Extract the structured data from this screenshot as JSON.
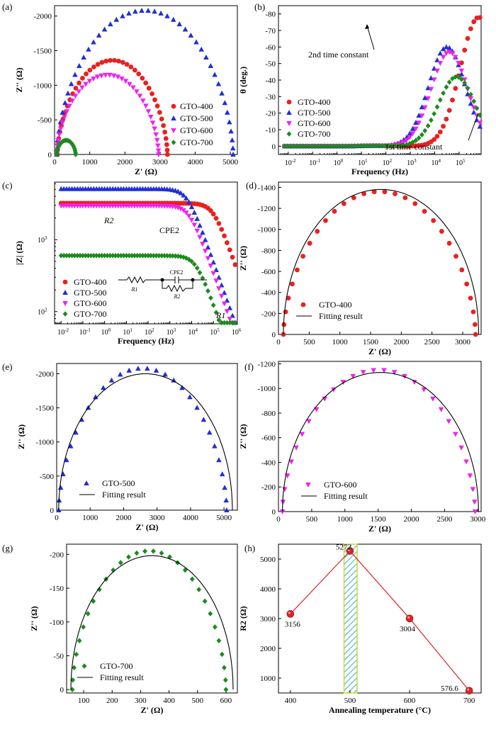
{
  "colors": {
    "GTO-400": "#e8211f",
    "GTO-500": "#1f2fd6",
    "GTO-600": "#ee22ee",
    "GTO-700": "#1d8a1d",
    "fit": "#000000",
    "hatch": "#4fb8d8",
    "hatch_border": "#c8d83a"
  },
  "chart_data": [
    {
      "panel": "(a)",
      "type": "scatter",
      "xlabel": "Z' (Ω)",
      "ylabel": "Z'' (Ω)",
      "xlim": [
        0,
        5200
      ],
      "ylim": [
        0,
        -2150
      ],
      "xticks": [
        0,
        1000,
        2000,
        3000,
        4000,
        5000
      ],
      "yticks": [
        0,
        -500,
        -1000,
        -1500,
        -2000
      ],
      "series": [
        {
          "name": "GTO-400",
          "marker": "circle",
          "arc": [
            80,
            3210,
            1360,
            1.2,
            42
          ]
        },
        {
          "name": "GTO-500",
          "marker": "triangle-up",
          "arc": [
            60,
            5080,
            2080,
            1.2,
            44
          ]
        },
        {
          "name": "GTO-600",
          "marker": "triangle-down",
          "arc": [
            60,
            2960,
            1150,
            1.2,
            40
          ]
        },
        {
          "name": "GTO-700",
          "marker": "diamond",
          "arc": [
            60,
            600,
            205,
            1.2,
            20
          ]
        }
      ],
      "legend": "bottom-right"
    },
    {
      "panel": "(b)",
      "type": "scatter",
      "xlabel": "Frequency (Hz)",
      "ylabel": "θ (deg.)",
      "xscale": "log",
      "xlim": [
        -2.4,
        5.9
      ],
      "ylim": [
        5,
        -85
      ],
      "xticks": [
        -2,
        -1,
        0,
        1,
        2,
        3,
        4,
        5
      ],
      "yticks": [
        0,
        -10,
        -20,
        -30,
        -40,
        -50,
        -60,
        -70,
        -80
      ],
      "series": [
        {
          "name": "GTO-400",
          "marker": "circle",
          "dip": [
            5.8,
            78,
            0.75
          ]
        },
        {
          "name": "GTO-500",
          "marker": "triangle-up",
          "dip": [
            4.5,
            60,
            0.75
          ]
        },
        {
          "name": "GTO-600",
          "marker": "triangle-down",
          "dip": [
            4.6,
            57,
            0.75
          ]
        },
        {
          "name": "GTO-700",
          "marker": "diamond",
          "dip": [
            4.9,
            42,
            0.75
          ]
        }
      ],
      "annotations": [
        "2nd time constant",
        "1st time constant"
      ],
      "legend": "bottom-left"
    },
    {
      "panel": "(c)",
      "type": "scatter",
      "xlabel": "Frequency (Hz)",
      "ylabel": "|Z| (Ω)",
      "xscale": "log",
      "yscale": "log",
      "xlim": [
        -2.3,
        6.1
      ],
      "ylim": [
        1.83,
        3.8
      ],
      "xticks": [
        -2,
        -1,
        0,
        1,
        2,
        3,
        4,
        5,
        6
      ],
      "yticks": [
        2,
        3
      ],
      "series": [
        {
          "name": "GTO-400",
          "marker": "circle",
          "bode": [
            3210,
            5.0
          ]
        },
        {
          "name": "GTO-500",
          "marker": "triangle-up",
          "bode": [
            5080,
            3.8
          ]
        },
        {
          "name": "GTO-600",
          "marker": "triangle-down",
          "bode": [
            2960,
            3.9
          ]
        },
        {
          "name": "GTO-700",
          "marker": "diamond",
          "bode": [
            600,
            4.2
          ]
        }
      ],
      "annotations": [
        "R2",
        "CPE2",
        "R1"
      ],
      "circuit_labels": [
        "R1",
        "CPE2",
        "R2"
      ],
      "legend": "bottom-left"
    },
    {
      "panel": "(d)",
      "type": "scatter",
      "xlabel": "Z' (Ω)",
      "ylabel": "Z'' (Ω)",
      "xlim": [
        0,
        3300
      ],
      "ylim": [
        0,
        -1450
      ],
      "xticks": [
        0,
        500,
        1000,
        1500,
        2000,
        2500,
        3000
      ],
      "yticks": [
        0,
        -200,
        -400,
        -600,
        -800,
        -1000,
        -1200,
        -1400
      ],
      "series": [
        {
          "name": "GTO-400",
          "marker": "circle",
          "arc": [
            80,
            3210,
            1360,
            1.2,
            30
          ]
        }
      ],
      "fit": {
        "name": "Fitting result",
        "arc": [
          80,
          3260,
          1380,
          1.0
        ]
      },
      "legend": "bottom-center"
    },
    {
      "panel": "(e)",
      "type": "scatter",
      "xlabel": "Z' (Ω)",
      "ylabel": "Z'' (Ω)",
      "xlim": [
        0,
        5400
      ],
      "ylim": [
        0,
        -2150
      ],
      "xticks": [
        0,
        1000,
        2000,
        3000,
        4000,
        5000
      ],
      "yticks": [
        0,
        -500,
        -1000,
        -1500,
        -2000
      ],
      "series": [
        {
          "name": "GTO-500",
          "marker": "triangle-up",
          "arc": [
            60,
            5080,
            2080,
            1.2,
            30
          ]
        }
      ],
      "fit": {
        "name": "Fitting result",
        "arc": [
          60,
          5250,
          2000,
          1.0
        ]
      },
      "legend": "bottom-left"
    },
    {
      "panel": "(f)",
      "type": "scatter",
      "xlabel": "Z' (Ω)",
      "ylabel": "Z'' (Ω)",
      "xlim": [
        0,
        3050
      ],
      "ylim": [
        0,
        -1220
      ],
      "xticks": [
        0,
        500,
        1000,
        1500,
        2000,
        2500,
        3000
      ],
      "yticks": [
        0,
        -200,
        -400,
        -600,
        -800,
        -1000,
        -1200
      ],
      "series": [
        {
          "name": "GTO-600",
          "marker": "triangle-down",
          "arc": [
            60,
            2960,
            1150,
            1.2,
            30
          ]
        }
      ],
      "fit": {
        "name": "Fitting result",
        "arc": [
          60,
          3010,
          1130,
          1.0
        ]
      },
      "legend": "bottom-left"
    },
    {
      "panel": "(g)",
      "type": "scatter",
      "xlabel": "Z' (Ω)",
      "ylabel": "Z'' (Ω)",
      "xlim": [
        40,
        640
      ],
      "ylim": [
        5,
        -215
      ],
      "xticks": [
        100,
        200,
        300,
        400,
        500,
        600
      ],
      "yticks": [
        0,
        -50,
        -100,
        -150,
        -200
      ],
      "series": [
        {
          "name": "GTO-700",
          "marker": "diamond",
          "arc": [
            60,
            600,
            205,
            1.2,
            30
          ]
        }
      ],
      "fit": {
        "name": "Fitting result",
        "arc": [
          55,
          625,
          198,
          1.0
        ]
      },
      "legend": "bottom-left"
    },
    {
      "panel": "(h)",
      "type": "line",
      "xlabel": "Annealing temperature (°C)",
      "ylabel": "R2 (Ω)",
      "xlim": [
        380,
        720
      ],
      "ylim": [
        500,
        5500
      ],
      "xticks": [
        400,
        500,
        600,
        700
      ],
      "yticks": [
        1000,
        2000,
        3000,
        4000,
        5000
      ],
      "x": [
        400,
        500,
        600,
        700
      ],
      "values": [
        3156,
        5272,
        3004,
        576.6
      ],
      "data_labels": [
        "3156",
        "5272",
        "3004",
        "576.6"
      ],
      "highlight_x": [
        490,
        512
      ]
    }
  ]
}
